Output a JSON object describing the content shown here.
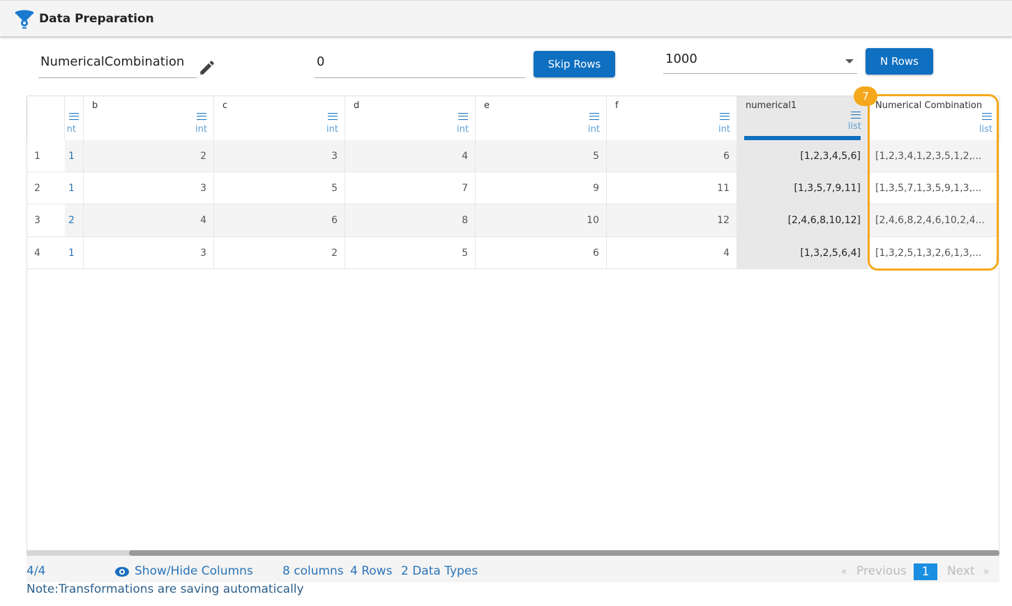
{
  "header": {
    "title": "Data Preparation",
    "icon": "data-prep-gear-icon"
  },
  "toolbar": {
    "name_value": "NumericalCombination",
    "skip_value": "0",
    "skip_button": "Skip Rows",
    "rows_select": "1000",
    "nrows_button": "N Rows"
  },
  "columns": [
    {
      "name": "",
      "type": "nt"
    },
    {
      "name": "b",
      "type": "int"
    },
    {
      "name": "c",
      "type": "int"
    },
    {
      "name": "d",
      "type": "int"
    },
    {
      "name": "e",
      "type": "int"
    },
    {
      "name": "f",
      "type": "int"
    },
    {
      "name": "numerical1",
      "type": "list"
    },
    {
      "name": "Numerical Combination",
      "type": "list"
    }
  ],
  "rows": [
    [
      "1",
      "1",
      "2",
      "3",
      "4",
      "5",
      "6",
      "[1,2,3,4,5,6]",
      "[1,2,3,4,1,2,3,5,1,2,..."
    ],
    [
      "2",
      "1",
      "3",
      "5",
      "7",
      "9",
      "11",
      "[1,3,5,7,9,11]",
      "[1,3,5,7,1,3,5,9,1,3,..."
    ],
    [
      "3",
      "2",
      "4",
      "6",
      "8",
      "10",
      "12",
      "[2,4,6,8,10,12]",
      "[2,4,6,8,2,4,6,10,2,4..."
    ],
    [
      "4",
      "1",
      "3",
      "2",
      "5",
      "6",
      "4",
      "[1,3,2,5,6,4]",
      "[1,3,2,5,1,3,2,6,1,3,..."
    ]
  ],
  "annotation_badge": "7",
  "colors": {
    "accent": "#0f6fc0",
    "highlight": "#f5a81c"
  },
  "footer": {
    "count": "4/4",
    "show_hide": "Show/Hide Columns",
    "columns": "8 columns",
    "rows": "4 Rows",
    "types": "2 Data Types",
    "previous": "Previous",
    "page": "1",
    "next": "Next",
    "prev_glyph": "«",
    "next_glyph": "»"
  },
  "note": "Note:Transformations are saving automatically"
}
